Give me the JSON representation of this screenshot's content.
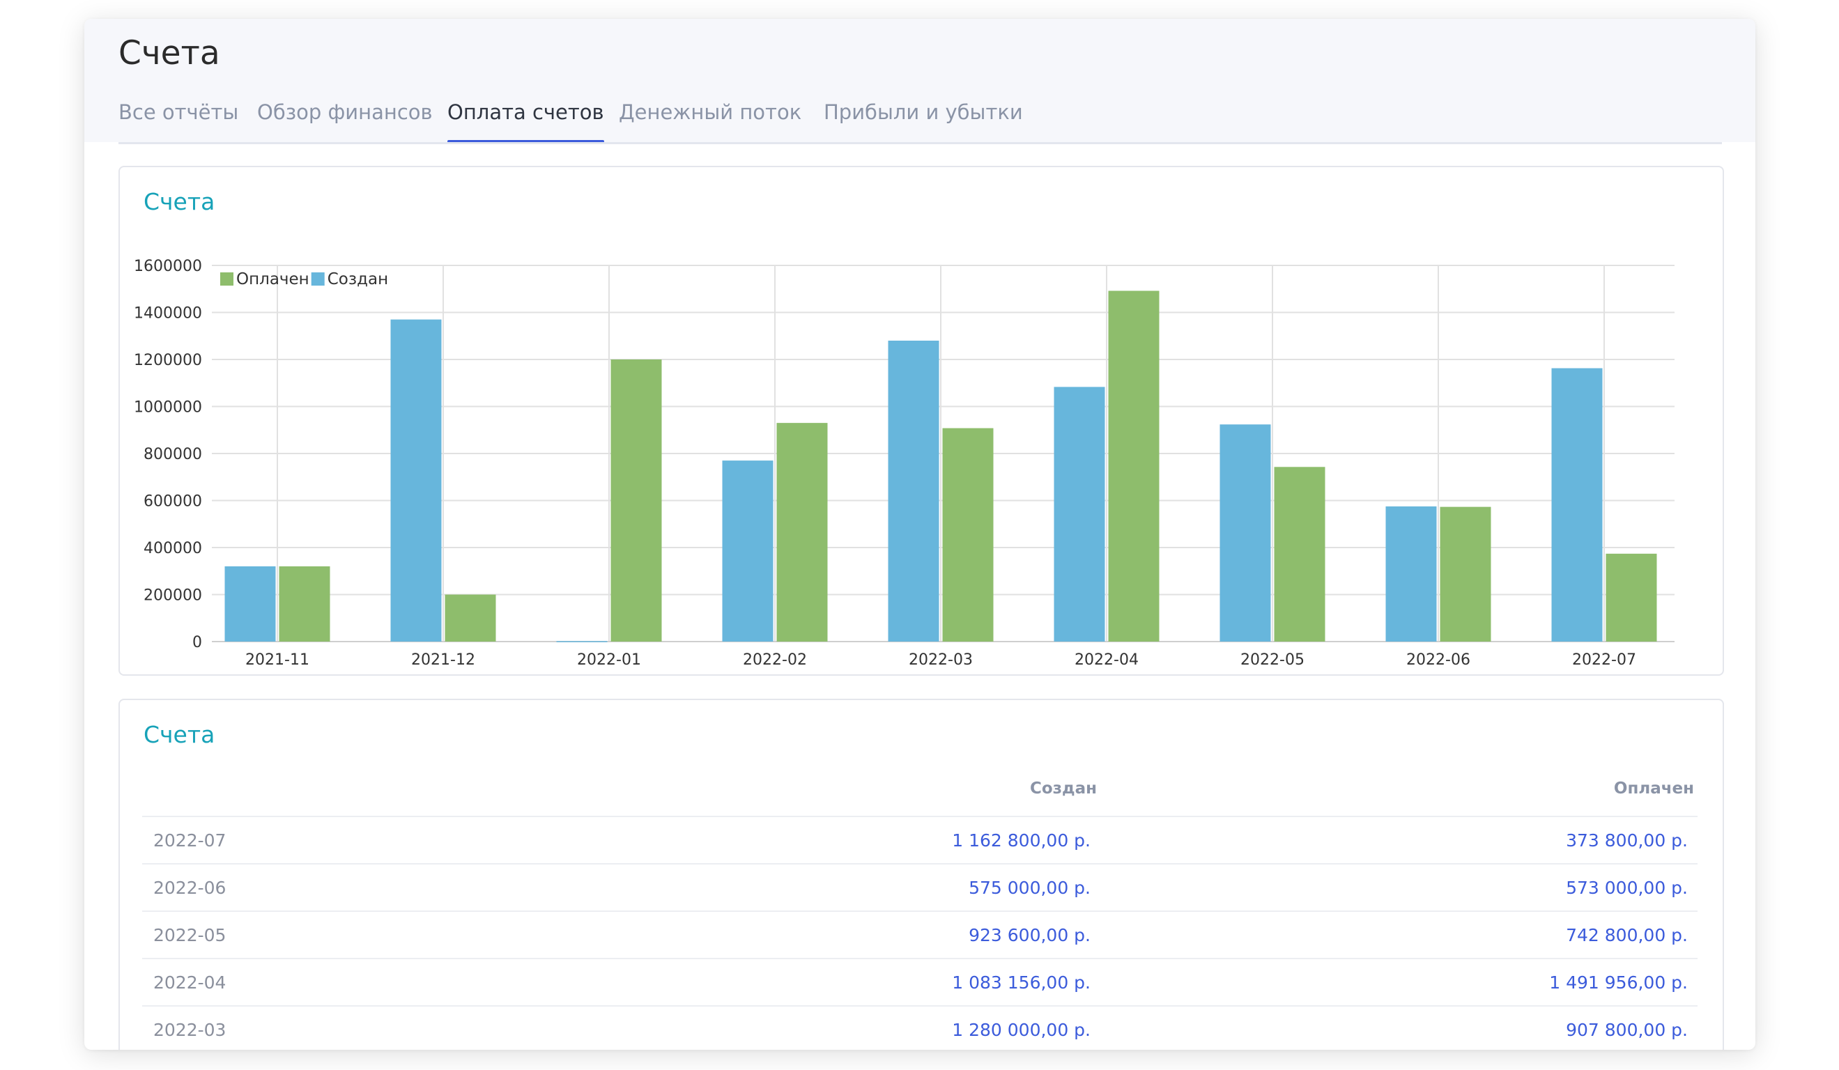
{
  "page": {
    "title": "Счета"
  },
  "tabs": [
    {
      "label": "Все отчёты",
      "active": false
    },
    {
      "label": "Обзор финансов",
      "active": false
    },
    {
      "label": "Оплата счетов",
      "active": true
    },
    {
      "label": "Денежный поток",
      "active": false
    },
    {
      "label": "Прибыли и убытки",
      "active": false
    }
  ],
  "chart_card": {
    "title": "Счета"
  },
  "chart_data": {
    "type": "bar",
    "title": "Счета",
    "xlabel": "",
    "ylabel": "",
    "categories": [
      "2021-11",
      "2021-12",
      "2022-01",
      "2022-02",
      "2022-03",
      "2022-04",
      "2022-05",
      "2022-06",
      "2022-07"
    ],
    "series": [
      {
        "name": "Создан",
        "color": "#67b6dc",
        "values": [
          320000,
          1370000,
          2000,
          770000,
          1280000,
          1083156,
          923600,
          575000,
          1162800
        ]
      },
      {
        "name": "Оплачен",
        "color": "#8ebd6c",
        "values": [
          320000,
          200000,
          1200000,
          930000,
          907800,
          1491956,
          742800,
          573000,
          373800
        ]
      }
    ],
    "legend": {
      "order": [
        "Оплачен",
        "Создан"
      ],
      "placement": "top-left"
    },
    "ylim": [
      0,
      1600000
    ],
    "yticks": [
      "0",
      "200000",
      "400000",
      "600000",
      "800000",
      "1000000",
      "1200000",
      "1400000",
      "1600000"
    ],
    "grid": true
  },
  "table_card": {
    "title": "Счета",
    "columns": {
      "created": "Создан",
      "paid": "Оплачен"
    },
    "rows": [
      {
        "month": "2022-07",
        "created": "1 162 800,00 р.",
        "paid": "373 800,00 р."
      },
      {
        "month": "2022-06",
        "created": "575 000,00 р.",
        "paid": "573 000,00 р."
      },
      {
        "month": "2022-05",
        "created": "923 600,00 р.",
        "paid": "742 800,00 р."
      },
      {
        "month": "2022-04",
        "created": "1 083 156,00 р.",
        "paid": "1 491 956,00 р."
      },
      {
        "month": "2022-03",
        "created": "1 280 000,00 р.",
        "paid": "907 800,00 р."
      }
    ]
  }
}
